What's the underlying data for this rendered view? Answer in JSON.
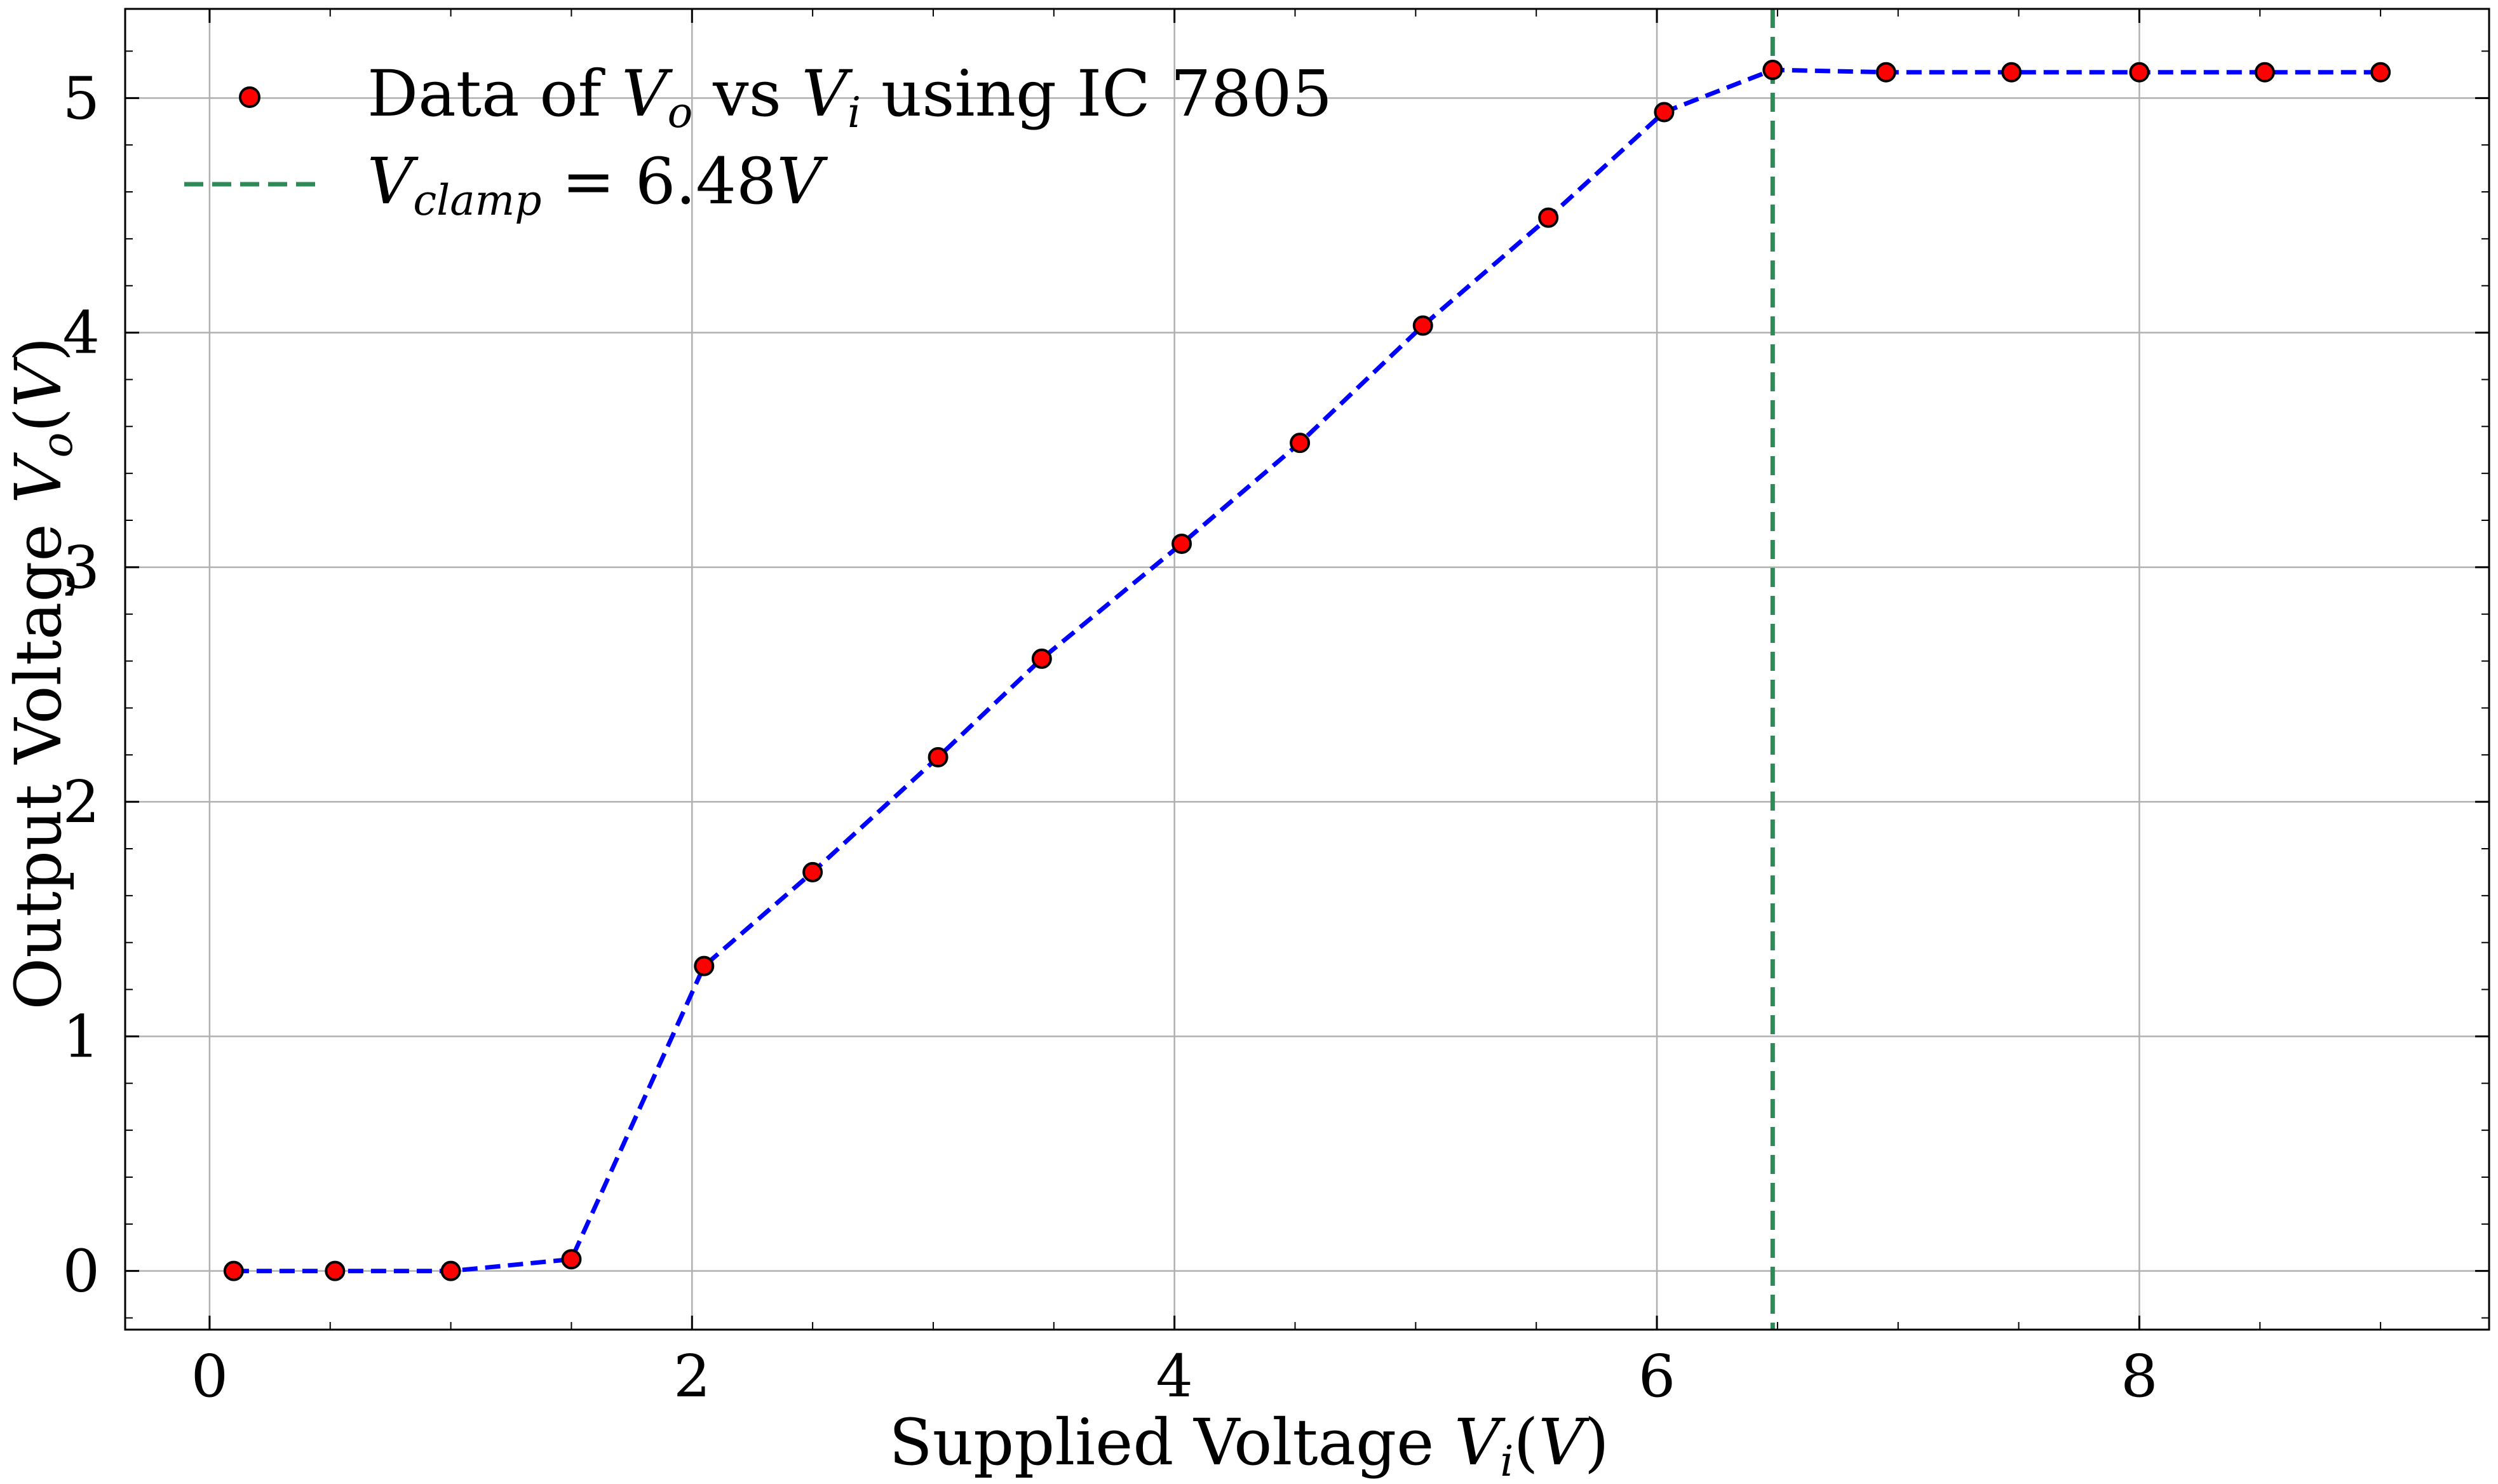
{
  "chart_data": {
    "type": "line",
    "xlabel": "Supplied Voltage Vi(V)",
    "ylabel": "Output Voltage Vo(V)",
    "xlim": [
      -0.35,
      9.45
    ],
    "ylim": [
      -0.25,
      5.38
    ],
    "xticks": [
      0,
      2,
      4,
      6,
      8
    ],
    "yticks": [
      0,
      1,
      2,
      3,
      4,
      5
    ],
    "xtick_labels": [
      "0",
      "2",
      "4",
      "6",
      "8"
    ],
    "ytick_labels": [
      "0",
      "1",
      "2",
      "3",
      "4",
      "5"
    ],
    "grid": true,
    "legend_position": "top-left",
    "series": [
      {
        "name": "Data of Vo vs Vi using IC 7805",
        "style": "scatter+dashed-line",
        "marker_color": "#ff0000",
        "marker_edge": "#000000",
        "line_color": "#0000ff",
        "x": [
          0.1,
          0.52,
          1.0,
          1.5,
          2.05,
          2.5,
          3.02,
          3.45,
          4.03,
          4.52,
          5.03,
          5.55,
          6.03,
          6.48,
          6.95,
          7.47,
          8.0,
          8.52,
          9.0
        ],
        "y": [
          0.0,
          0.0,
          0.0,
          0.05,
          1.3,
          1.7,
          2.19,
          2.61,
          3.1,
          3.53,
          4.03,
          4.49,
          4.94,
          5.12,
          5.11,
          5.11,
          5.11,
          5.11,
          5.11
        ]
      }
    ],
    "vlines": [
      {
        "name": "Vclamp = 6.48V",
        "x": 6.48,
        "color": "#2e8b57",
        "style": "dashed"
      }
    ],
    "legend": {
      "entries": [
        {
          "label": "Data of Vo vs Vi using IC 7805",
          "kind": "marker"
        },
        {
          "label": "Vclamp = 6.48V",
          "kind": "dashed-line"
        }
      ]
    }
  }
}
